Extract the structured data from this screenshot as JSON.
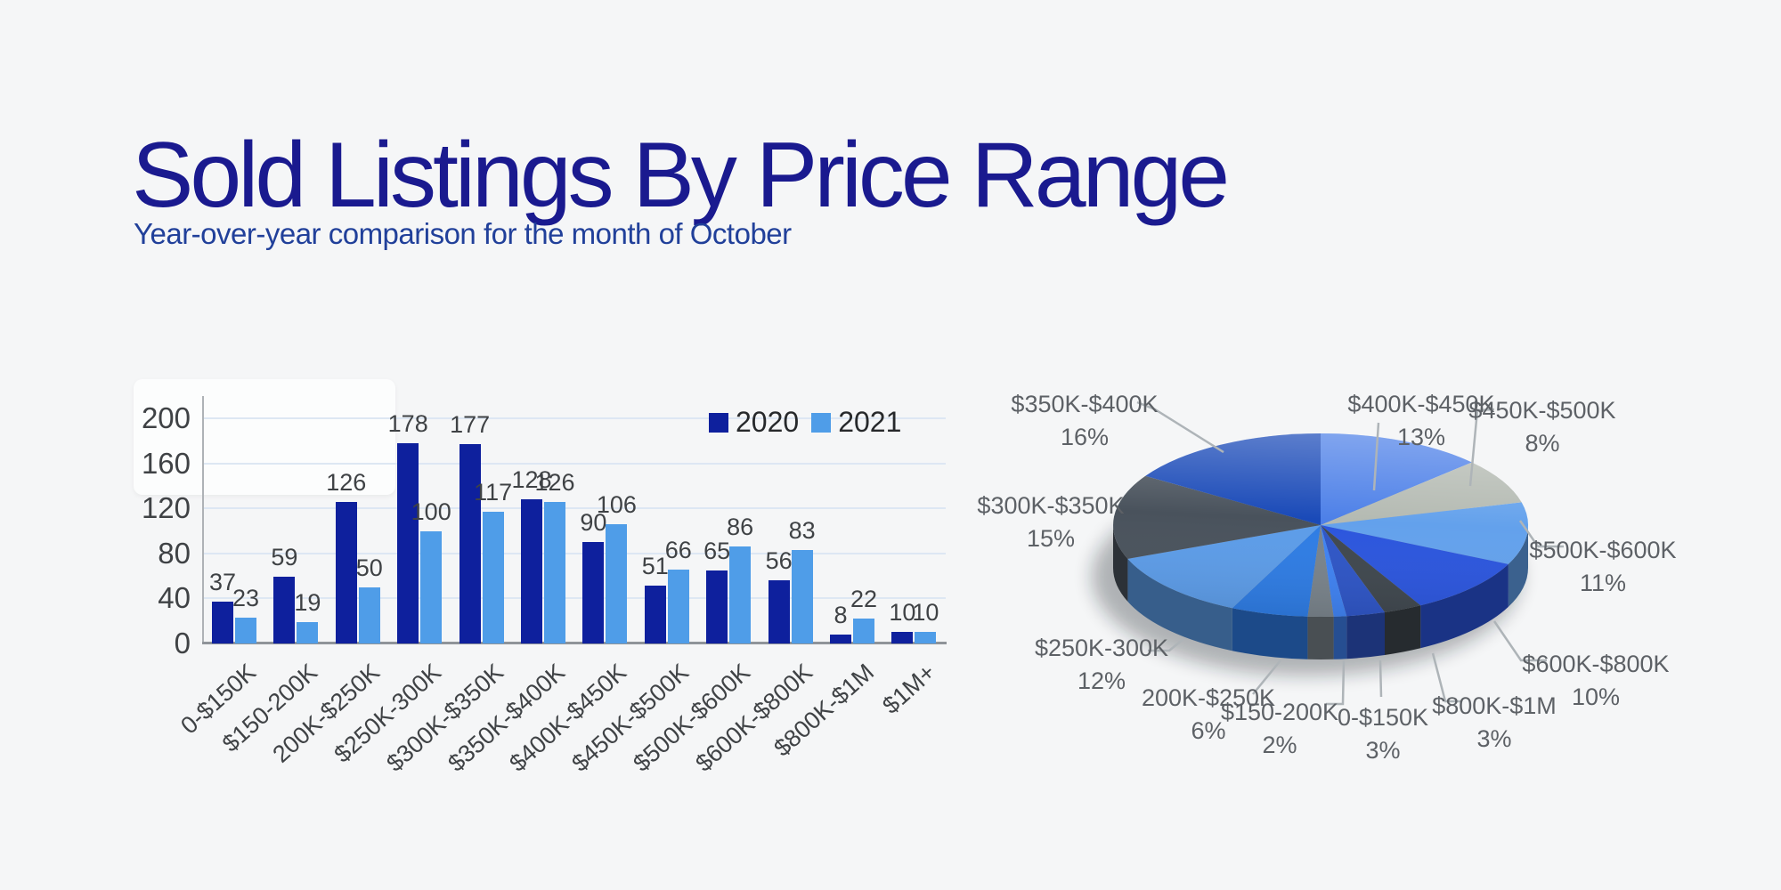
{
  "page": {
    "title": "Sold Listings By Price Range",
    "subtitle": "Year-over-year comparison for the month of October",
    "background_color": "#f5f6f7",
    "title_color": "#1a1a8f",
    "subtitle_color": "#21409a"
  },
  "chart_data": [
    {
      "type": "bar",
      "categories": [
        "0-$150K",
        "$150-200K",
        "200K-$250K",
        "$250K-300K",
        "$300K-$350K",
        "$350K-$400K",
        "$400K-$450K",
        "$450K-$500K",
        "$500K-$600K",
        "$600K-$800K",
        "$800K-$1M",
        "$1M+"
      ],
      "series": [
        {
          "name": "2020",
          "color": "#0e209d",
          "values": [
            37,
            59,
            126,
            178,
            177,
            128,
            90,
            51,
            65,
            56,
            8,
            10
          ]
        },
        {
          "name": "2021",
          "color": "#4f9de8",
          "values": [
            23,
            19,
            50,
            100,
            117,
            126,
            106,
            66,
            86,
            83,
            22,
            10
          ]
        }
      ],
      "ylim": [
        0,
        200
      ],
      "yticks": [
        0,
        40,
        80,
        120,
        160,
        200
      ],
      "grid": true,
      "bar_value_labels": true,
      "legend_position": "top-right",
      "axis_color": "#8f9499",
      "gridline_color": "#dde7f3",
      "label_color": "#3f4245"
    },
    {
      "type": "pie",
      "style": "3d",
      "start_at_12_oclock_clockwise": true,
      "slices": [
        {
          "label": "$400K-$450K",
          "percent_label": "13%",
          "value": 13,
          "color": "#4d80e8"
        },
        {
          "label": "$450K-$500K",
          "percent_label": "8%",
          "value": 8,
          "color": "#b4bab2"
        },
        {
          "label": "$500K-$600K",
          "percent_label": "11%",
          "value": 11,
          "color": "#63a1ec"
        },
        {
          "label": "$600K-$800K",
          "percent_label": "10%",
          "value": 10,
          "color": "#2b55dd"
        },
        {
          "label": "$800K-$1M",
          "percent_label": "3%",
          "value": 3,
          "color": "#3f474e"
        },
        {
          "label": "0-$150K",
          "percent_label": "3%",
          "value": 3,
          "color": "#2e55c6"
        },
        {
          "label": "",
          "percent_label": "",
          "value": 1,
          "color": "#3f82f2"
        },
        {
          "label": "$150-200K",
          "percent_label": "2%",
          "value": 2,
          "color": "#79838b"
        },
        {
          "label": "200K-$250K",
          "percent_label": "6%",
          "value": 6,
          "color": "#2e7ce4"
        },
        {
          "label": "$250K-300K",
          "percent_label": "12%",
          "value": 12,
          "color": "#5c9ce8"
        },
        {
          "label": "$300K-$350K",
          "percent_label": "15%",
          "value": 15,
          "color": "#49525c"
        },
        {
          "label": "$350K-$400K",
          "percent_label": "16%",
          "value": 16,
          "color": "#1a4ab8"
        }
      ],
      "label_text_color": "#5d6166",
      "leader_line_color": "#aeb4b8"
    }
  ]
}
